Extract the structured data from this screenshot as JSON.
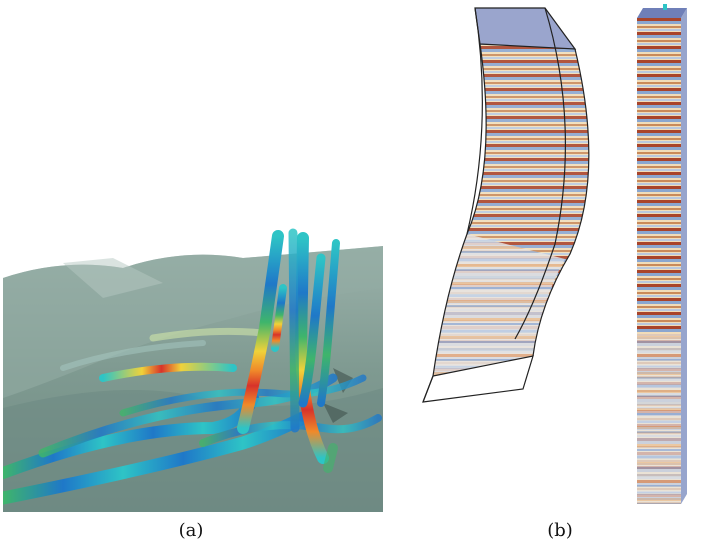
{
  "captions": {
    "a": "(a)",
    "b": "(b)"
  },
  "colors": {
    "terrain": "#7f9a91",
    "terrain_dark": "#5e7a72",
    "well_blue": "#1f78c8",
    "well_cyan": "#2ec4c6",
    "well_green": "#3fb56b",
    "well_yellow": "#f0d23a",
    "well_orange": "#f08a2a",
    "well_red": "#d8332a",
    "seismic_blue": "#8aa6cf",
    "seismic_red": "#a9442a",
    "seismic_cream": "#f1dcb8"
  }
}
